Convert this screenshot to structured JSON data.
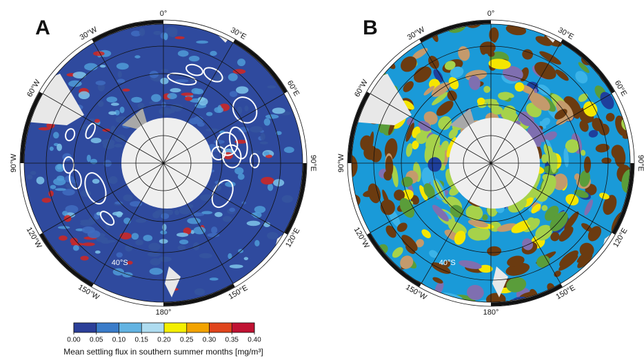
{
  "panels": [
    {
      "label": "A",
      "lon_labels": [
        "0°",
        "30°E",
        "60°E",
        "90°E",
        "120°E",
        "150°E",
        "180°",
        "150°W",
        "120°W",
        "90°W",
        "60°W",
        "30°W"
      ],
      "lat_label": "40°S"
    },
    {
      "label": "B",
      "lon_labels": [
        "0°",
        "30°E",
        "60°E",
        "90°E",
        "120°E",
        "150°E",
        "180°",
        "150°W",
        "120°W",
        "90°W",
        "60°W",
        "30°W"
      ],
      "lat_label": "40°S"
    }
  ],
  "colorbar": {
    "title": "Mean settling flux in southern summer months [mg/m³]",
    "lim": [
      0,
      0.4
    ],
    "ticks": [
      {
        "value": 0,
        "label": "0.00"
      },
      {
        "value": 0.05,
        "label": "0.05"
      },
      {
        "value": 0.1,
        "label": "0.10"
      },
      {
        "value": 0.15,
        "label": "0.15"
      },
      {
        "value": 0.2,
        "label": "0.20"
      },
      {
        "value": 0.25,
        "label": "0.25"
      },
      {
        "value": 0.3,
        "label": "0.30"
      },
      {
        "value": 0.35,
        "label": "0.35"
      },
      {
        "value": 0.4,
        "label": "0.40"
      }
    ],
    "colors": [
      "#2b3f99",
      "#3a7cc9",
      "#62b3e2",
      "#aedcf0",
      "#f4ef00",
      "#f2a300",
      "#e0441c",
      "#c01232"
    ]
  }
}
